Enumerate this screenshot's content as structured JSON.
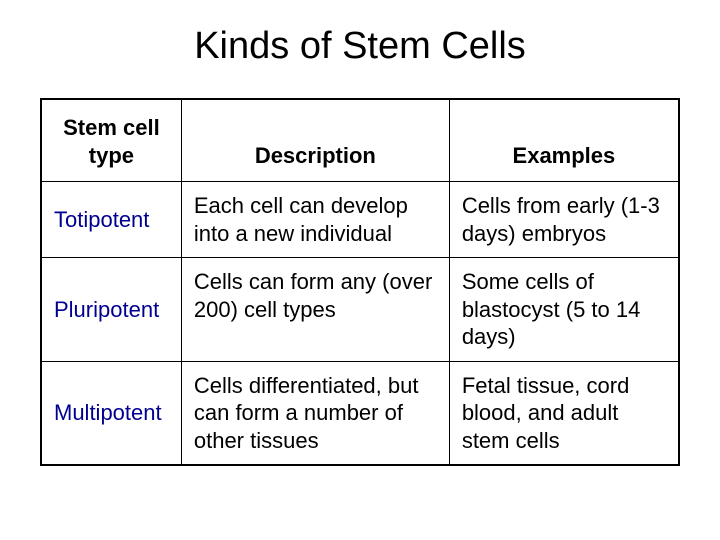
{
  "title": "Kinds of Stem Cells",
  "table": {
    "columns": {
      "type": "Stem cell type",
      "description": "Description",
      "examples": "Examples"
    },
    "rows": [
      {
        "type": "Totipotent",
        "description": "Each cell can develop into a new individual",
        "examples": "Cells from early (1-3 days) embryos"
      },
      {
        "type": "Pluripotent",
        "description": "Cells can form any (over 200) cell types",
        "examples": "Some cells of blastocyst (5 to 14 days)"
      },
      {
        "type": "Multipotent",
        "description": "Cells differentiated, but can form a number of other tissues",
        "examples": "Fetal tissue, cord blood, and adult stem cells"
      }
    ],
    "styling": {
      "title_fontsize": 38,
      "title_color": "#000000",
      "header_fontsize": 22,
      "header_fontweight": "bold",
      "cell_fontsize": 22,
      "type_color": "#000090",
      "text_color": "#000000",
      "border_color": "#000000",
      "background_color": "#ffffff",
      "column_widths": [
        "22%",
        "42%",
        "36%"
      ]
    }
  }
}
